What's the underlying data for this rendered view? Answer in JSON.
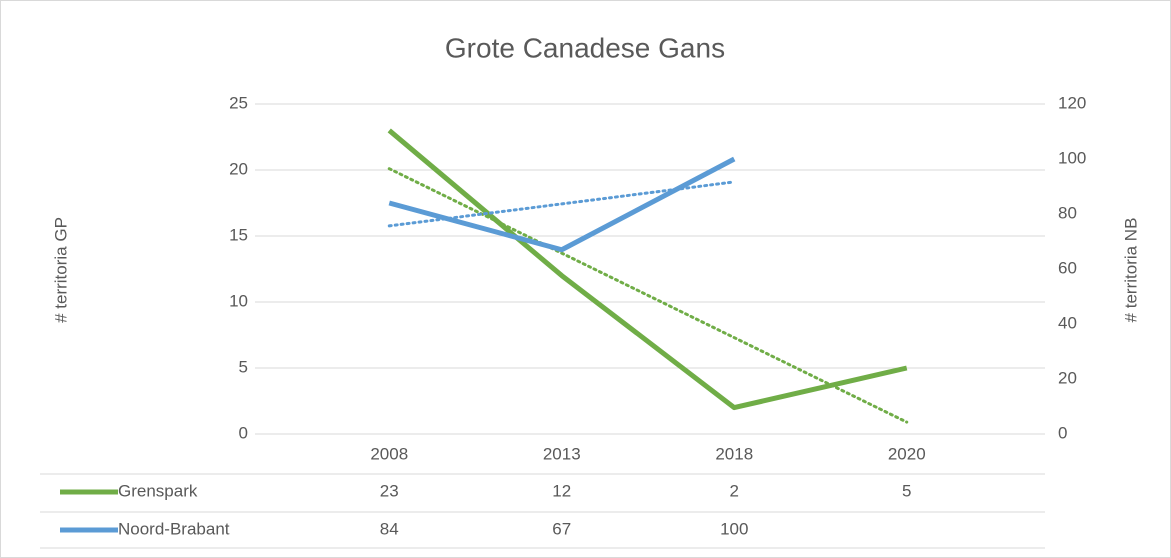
{
  "chart_data": {
    "type": "line",
    "title": "Grote Canadese Gans",
    "categories": [
      "2008",
      "2013",
      "2018",
      "2020"
    ],
    "series": [
      {
        "name": "Grenspark",
        "color": "#70ad47",
        "values": [
          23,
          12,
          2,
          5
        ],
        "axis": "y"
      },
      {
        "name": "Noord-Brabant",
        "color": "#5b9bd5",
        "values": [
          84,
          67,
          100,
          null
        ],
        "axis": "y2"
      }
    ],
    "ylabel": "# territoria GP",
    "y2label": "# territoria NB",
    "ylim": [
      0,
      25
    ],
    "yticks": [
      0,
      5,
      10,
      15,
      20,
      25
    ],
    "y2lim": [
      0,
      120
    ],
    "y2ticks": [
      0,
      20,
      40,
      60,
      80,
      100,
      120
    ],
    "grid": true,
    "trendline": true,
    "data_table": true
  }
}
